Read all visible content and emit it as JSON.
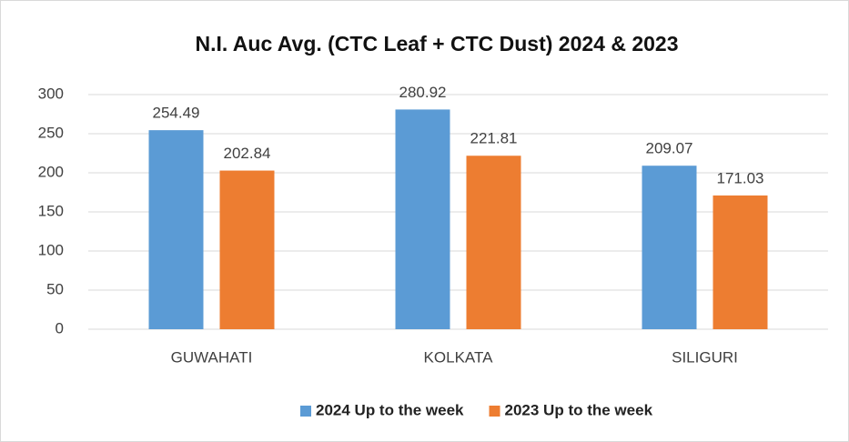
{
  "chart_data": {
    "type": "bar",
    "title": "N.I. Auc Avg. (CTC Leaf + CTC Dust) 2024 & 2023",
    "categories": [
      "GUWAHATI",
      "KOLKATA",
      "SILIGURI"
    ],
    "series": [
      {
        "name": "2024 Up to the week",
        "color": "#5b9bd5",
        "values": [
          254.49,
          280.92,
          209.07
        ]
      },
      {
        "name": "2023 Up to the week",
        "color": "#ed7d31",
        "values": [
          202.84,
          221.81,
          171.03
        ]
      }
    ],
    "ylim": [
      0,
      300
    ],
    "yticks": [
      0,
      50,
      100,
      150,
      200,
      250,
      300
    ],
    "grid": true,
    "legend": "bottom"
  }
}
